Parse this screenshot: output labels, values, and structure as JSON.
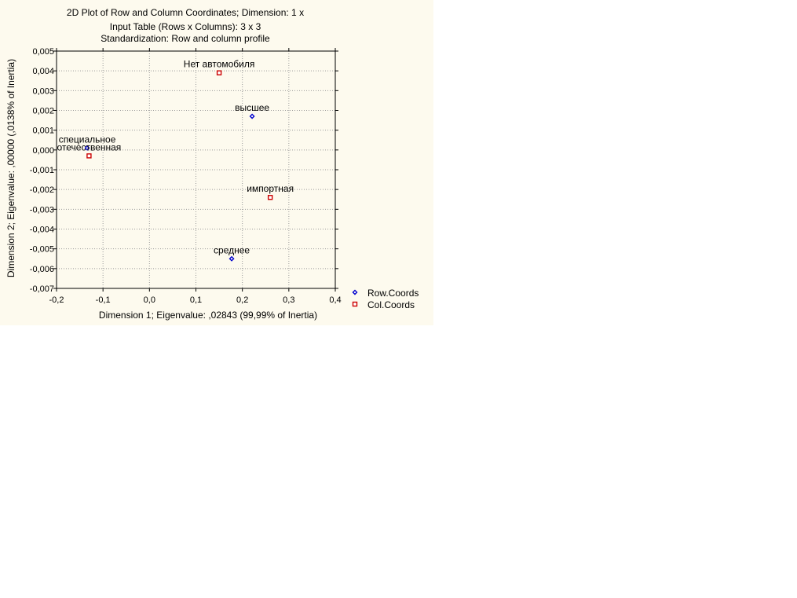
{
  "chart_data": {
    "type": "scatter",
    "title": [
      "2D Plot of Row and Column Coordinates; Dimension:  1 x",
      "Input Table (Rows x Columns): 3 x 3",
      "Standardization: Row and column profile"
    ],
    "xlabel": "Dimension 1; Eigenvalue: ,02843 (99,99% of Inertia)",
    "ylabel": "Dimension 2; Eigenvalue: ,00000 (,0138% of Inertia)",
    "xlim": [
      -0.2,
      0.4
    ],
    "ylim": [
      -0.007,
      0.005
    ],
    "x_ticks": [
      "-0,2",
      "-0,1",
      "0,0",
      "0,1",
      "0,2",
      "0,3",
      "0,4"
    ],
    "y_ticks": [
      "0,005",
      "0,004",
      "0,003",
      "0,002",
      "0,001",
      "0,000",
      "-0,001",
      "-0,002",
      "-0,003",
      "-0,004",
      "-0,005",
      "-0,006",
      "-0,007"
    ],
    "grid": true,
    "legend_position": "right-bottom",
    "series": [
      {
        "name": "Row.Coords",
        "marker": "diamond",
        "color": "#0000cc",
        "points": [
          {
            "label": "высшее",
            "x": 0.221,
            "y": 0.0017
          },
          {
            "label": "специальное",
            "x": -0.134,
            "y": 0.0001
          },
          {
            "label": "среднее",
            "x": 0.177,
            "y": -0.0055
          }
        ]
      },
      {
        "name": "Col.Coords",
        "marker": "square",
        "color": "#cc0000",
        "points": [
          {
            "label": "Нет автомобиля",
            "x": 0.15,
            "y": 0.0039
          },
          {
            "label": "отечественная",
            "x": -0.13,
            "y": -0.0003
          },
          {
            "label": "импортная",
            "x": 0.26,
            "y": -0.0024
          }
        ]
      }
    ]
  }
}
